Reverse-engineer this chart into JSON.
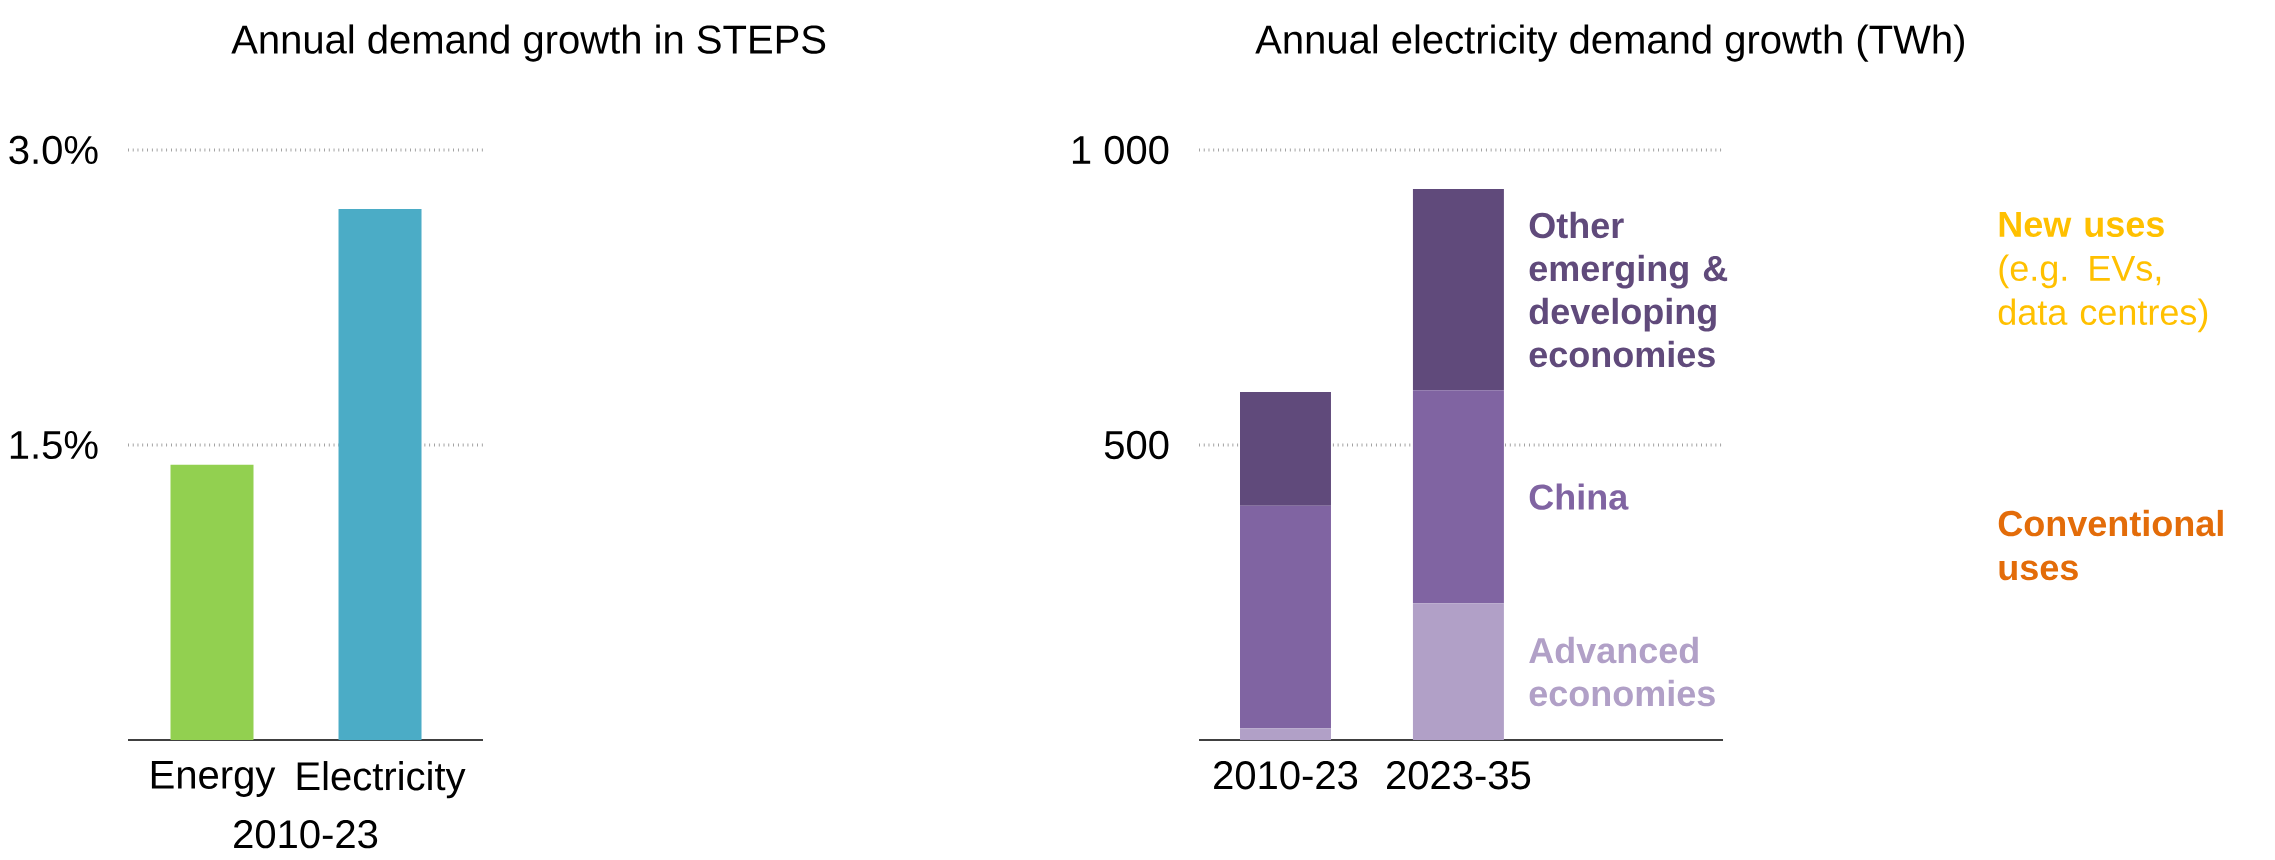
{
  "chart_data": [
    {
      "type": "bar",
      "title": "Annual demand growth in STEPS",
      "xlabel": "2010-23",
      "categories": [
        "Energy",
        "Electricity"
      ],
      "values": [
        1.4,
        2.7
      ],
      "colors": [
        "#92d050",
        "#4bacc6"
      ],
      "ylim": [
        0,
        3.0
      ],
      "yticks": [
        {
          "value": 1.5,
          "label": "1.5%"
        },
        {
          "value": 3.0,
          "label": "3.0%"
        }
      ],
      "grid": "y"
    },
    {
      "type": "bar",
      "title": "Annual electricity demand growth (TWh)",
      "stacked": true,
      "categories": [
        "2010-23",
        "2023-35"
      ],
      "series": [
        {
          "name": "Advanced economies",
          "color": "#b1a0c7",
          "values": [
            20,
            232
          ]
        },
        {
          "name": "China",
          "color": "#8064a2",
          "values": [
            377,
            361
          ]
        },
        {
          "name": "Other emerging & developing economies",
          "color": "#604a7b",
          "values": [
            193,
            341
          ]
        }
      ],
      "ylim": [
        0,
        1000
      ],
      "yticks": [
        500,
        {
          "value": 1000,
          "label": "1 000"
        }
      ],
      "grid": "y",
      "annotations": [
        "**New uses** (e.g. EVs, data centres)",
        "**Conventional uses**"
      ]
    }
  ]
}
